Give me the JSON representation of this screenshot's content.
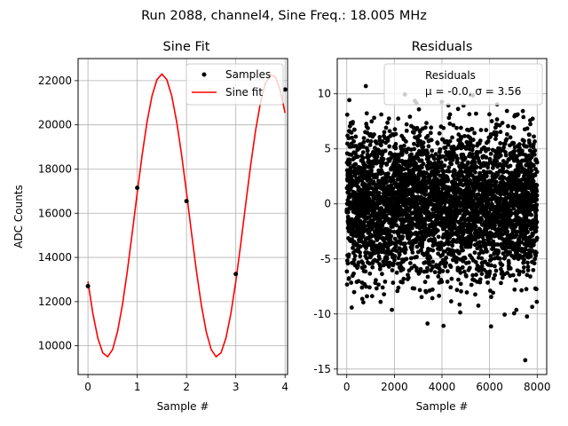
{
  "figure": {
    "suptitle": "Run 2088, channel4, Sine Freq.: 18.005 MHz"
  },
  "chart_data": [
    {
      "type": "line",
      "title": "Sine Fit",
      "xlabel": "Sample #",
      "ylabel": "ADC Counts",
      "xlim": [
        -0.2,
        4.05
      ],
      "ylim": [
        8700,
        23000
      ],
      "grid": true,
      "xticks": [
        0,
        1,
        2,
        3,
        4
      ],
      "yticks": [
        10000,
        12000,
        14000,
        16000,
        18000,
        20000,
        22000
      ],
      "legend_position": "top-right",
      "series": [
        {
          "name": "Samples",
          "kind": "scatter",
          "color": "#000000",
          "x": [
            0,
            1,
            2,
            3,
            4
          ],
          "y": [
            12700,
            17150,
            16550,
            13250,
            21600
          ]
        },
        {
          "name": "Sine fit",
          "kind": "line",
          "color": "#ff0000",
          "amplitude": 6400,
          "offset": 15900,
          "period": 2.23,
          "phase_peak": 1.5,
          "x_range": [
            0,
            4
          ],
          "n_points": 41
        }
      ]
    },
    {
      "type": "scatter",
      "title": "Residuals",
      "xlabel": "Sample #",
      "ylabel": "",
      "xlim": [
        -400,
        8400
      ],
      "ylim": [
        -15.5,
        13.2
      ],
      "grid": true,
      "xticks": [
        0,
        2000,
        4000,
        6000,
        8000
      ],
      "yticks": [
        -15,
        -10,
        -5,
        0,
        5,
        10
      ],
      "legend_position": "top-right",
      "legend": {
        "label": "Residuals",
        "stats": "μ = -0.0, σ = 3.56"
      },
      "series": [
        {
          "name": "Residuals",
          "color": "#000000",
          "n_points": 8000,
          "mean": 0.0,
          "std": 3.56,
          "x_range": [
            0,
            8000
          ],
          "min": -14.2,
          "max": 10.7
        }
      ]
    }
  ]
}
